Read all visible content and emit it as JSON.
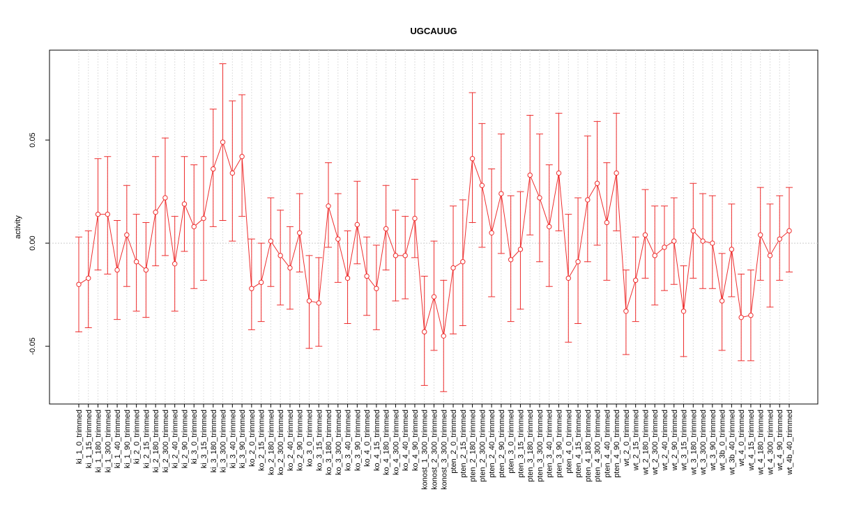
{
  "chart_data": {
    "type": "errorbar-line",
    "title": "UGCAUUG",
    "y_label": "activity",
    "categories": [
      "ki_1_0_trimmed",
      "ki_1_15_trimmed",
      "ki_1_180_trimmed",
      "ki_1_300_trimmed",
      "ki_1_40_trimmed",
      "ki_1_90_trimmed",
      "ki_2_0_trimmed",
      "ki_2_15_trimmed",
      "ki_2_180_trimmed",
      "ki_2_300_trimmed",
      "ki_2_40_trimmed",
      "ki_2_90_trimmed",
      "ki_3_0_trimmed",
      "ki_3_15_trimmed",
      "ki_3_180_trimmed",
      "ki_3_300_trimmed",
      "ki_3_40_trimmed",
      "ki_3_90_trimmed",
      "ko_2_0_trimmed",
      "ko_2_15_trimmed",
      "ko_2_180_trimmed",
      "ko_2_300_trimmed",
      "ko_2_40_trimmed",
      "ko_2_90_trimmed",
      "ko_3_0_trimmed",
      "ko_3_15_trimmed",
      "ko_3_180_trimmed",
      "ko_3_300_trimmed",
      "ko_3_40_trimmed",
      "ko_3_90_trimmed",
      "ko_4_0_trimmed",
      "ko_4_15_trimmed",
      "ko_4_180_trimmed",
      "ko_4_300_trimmed",
      "ko_4_40_trimmed",
      "ko_4_90_trimmed",
      "konost_1_300_trimmed",
      "konost_2_300_trimmed",
      "konost_3_300_trimmed",
      "pten_2_0_trimmed",
      "pten_2_15_trimmed",
      "pten_2_180_trimmed",
      "pten_2_300_trimmed",
      "pten_2_40_trimmed",
      "pten_2_90_trimmed",
      "pten_3_0_trimmed",
      "pten_3_15_trimmed",
      "pten_3_180_trimmed",
      "pten_3_300_trimmed",
      "pten_3_40_trimmed",
      "pten_3_90_trimmed",
      "pten_4_0_trimmed",
      "pten_4_15_trimmed",
      "pten_4_180_trimmed",
      "pten_4_300_trimmed",
      "pten_4_40_trimmed",
      "pten_4_90_trimmed",
      "wt_2_0_trimmed",
      "wt_2_15_trimmed",
      "wt_2_180_trimmed",
      "wt_2_300_trimmed",
      "wt_2_40_trimmed",
      "wt_2_90_trimmed",
      "wt_3_15_trimmed",
      "wt_3_180_trimmed",
      "wt_3_300_trimmed",
      "wt_3_90_trimmed",
      "wt_3b_0_trimmed",
      "wt_3b_40_trimmed",
      "wt_4_0_trimmed",
      "wt_4_15_trimmed",
      "wt_4_180_trimmed",
      "wt_4_300_trimmed",
      "wt_4_90_trimmed",
      "wt_4b_40_trimmed"
    ],
    "values": [
      -0.02,
      -0.017,
      0.014,
      0.014,
      -0.013,
      0.004,
      -0.009,
      -0.013,
      0.015,
      0.022,
      -0.01,
      0.019,
      0.008,
      0.012,
      0.036,
      0.049,
      0.034,
      0.042,
      -0.022,
      -0.019,
      0.001,
      -0.006,
      -0.012,
      0.005,
      -0.028,
      -0.029,
      0.018,
      0.002,
      -0.017,
      0.009,
      -0.016,
      -0.022,
      0.007,
      -0.006,
      -0.006,
      0.012,
      -0.043,
      -0.026,
      -0.045,
      -0.012,
      -0.009,
      0.041,
      0.028,
      0.005,
      0.024,
      -0.008,
      -0.003,
      0.033,
      0.022,
      0.008,
      0.034,
      -0.017,
      -0.009,
      0.021,
      0.029,
      0.01,
      0.034,
      -0.033,
      -0.018,
      0.004,
      -0.006,
      -0.002,
      0.001,
      -0.033,
      0.006,
      0.001,
      0.0,
      -0.028,
      -0.003,
      -0.036,
      -0.035,
      0.004,
      -0.006,
      0.002,
      0.006
    ],
    "upper": [
      0.003,
      0.006,
      0.041,
      0.042,
      0.011,
      0.028,
      0.014,
      0.01,
      0.042,
      0.051,
      0.013,
      0.042,
      0.038,
      0.042,
      0.065,
      0.087,
      0.069,
      0.072,
      0.002,
      0.0,
      0.022,
      0.016,
      0.008,
      0.024,
      -0.006,
      -0.007,
      0.039,
      0.024,
      0.006,
      0.03,
      0.003,
      -0.001,
      0.028,
      0.016,
      0.013,
      0.031,
      -0.016,
      0.001,
      -0.018,
      0.018,
      0.021,
      0.073,
      0.058,
      0.036,
      0.053,
      0.023,
      0.025,
      0.062,
      0.053,
      0.038,
      0.063,
      0.014,
      0.022,
      0.052,
      0.059,
      0.039,
      0.063,
      -0.013,
      0.003,
      0.026,
      0.018,
      0.018,
      0.022,
      -0.011,
      0.029,
      0.024,
      0.023,
      -0.005,
      0.019,
      -0.015,
      -0.013,
      0.027,
      0.019,
      0.023,
      0.027
    ],
    "lower": [
      -0.043,
      -0.041,
      -0.013,
      -0.015,
      -0.037,
      -0.021,
      -0.033,
      -0.036,
      -0.011,
      -0.006,
      -0.033,
      -0.004,
      -0.022,
      -0.018,
      0.008,
      0.011,
      0.001,
      0.013,
      -0.042,
      -0.038,
      -0.021,
      -0.03,
      -0.032,
      -0.014,
      -0.051,
      -0.05,
      -0.002,
      -0.019,
      -0.039,
      -0.01,
      -0.035,
      -0.042,
      -0.013,
      -0.028,
      -0.027,
      -0.007,
      -0.069,
      -0.052,
      -0.072,
      -0.044,
      -0.04,
      0.01,
      -0.002,
      -0.026,
      -0.005,
      -0.038,
      -0.032,
      0.004,
      -0.009,
      -0.021,
      0.006,
      -0.048,
      -0.039,
      -0.009,
      -0.001,
      -0.018,
      0.006,
      -0.054,
      -0.038,
      -0.017,
      -0.03,
      -0.023,
      -0.02,
      -0.055,
      -0.017,
      -0.022,
      -0.022,
      -0.052,
      -0.026,
      -0.057,
      -0.057,
      -0.018,
      -0.031,
      -0.018,
      -0.014
    ],
    "color": "#ee2c2c",
    "ylim": [
      -0.078,
      0.0936
    ],
    "yticks": [
      -0.05,
      {
        "value": 0,
        "label": "0.00"
      },
      0.05
    ],
    "grid": true
  }
}
